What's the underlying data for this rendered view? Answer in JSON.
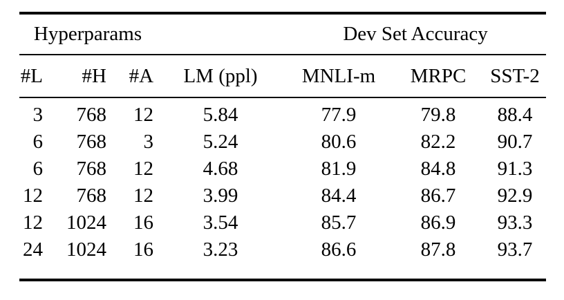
{
  "table": {
    "group_headers": [
      {
        "label": "Hyperparams",
        "colspan": 3
      },
      {
        "label": "",
        "colspan": 1
      },
      {
        "label": "Dev Set Accuracy",
        "colspan": 3
      }
    ],
    "columns": [
      "#L",
      "#H",
      "#A",
      "LM (ppl)",
      "MNLI-m",
      "MRPC",
      "SST-2"
    ],
    "rows": [
      [
        "3",
        "768",
        "12",
        "5.84",
        "77.9",
        "79.8",
        "88.4"
      ],
      [
        "6",
        "768",
        "3",
        "5.24",
        "80.6",
        "82.2",
        "90.7"
      ],
      [
        "6",
        "768",
        "12",
        "4.68",
        "81.9",
        "84.8",
        "91.3"
      ],
      [
        "12",
        "768",
        "12",
        "3.99",
        "84.4",
        "86.7",
        "92.9"
      ],
      [
        "12",
        "1024",
        "16",
        "3.54",
        "85.7",
        "86.9",
        "93.3"
      ],
      [
        "24",
        "1024",
        "16",
        "3.23",
        "86.6",
        "87.8",
        "93.7"
      ]
    ],
    "colors": {
      "text": "#000000",
      "background": "#ffffff",
      "rule": "#000000"
    }
  },
  "chart_data": {
    "type": "table",
    "column_groups": [
      "Hyperparams",
      "Dev Set Accuracy"
    ],
    "columns": [
      "#L",
      "#H",
      "#A",
      "LM (ppl)",
      "MNLI-m",
      "MRPC",
      "SST-2"
    ],
    "rows": [
      [
        3,
        768,
        12,
        5.84,
        77.9,
        79.8,
        88.4
      ],
      [
        6,
        768,
        3,
        5.24,
        80.6,
        82.2,
        90.7
      ],
      [
        6,
        768,
        12,
        4.68,
        81.9,
        84.8,
        91.3
      ],
      [
        12,
        768,
        12,
        3.99,
        84.4,
        86.7,
        92.9
      ],
      [
        12,
        1024,
        16,
        3.54,
        85.7,
        86.9,
        93.3
      ],
      [
        24,
        1024,
        16,
        3.23,
        86.6,
        87.8,
        93.7
      ]
    ]
  }
}
